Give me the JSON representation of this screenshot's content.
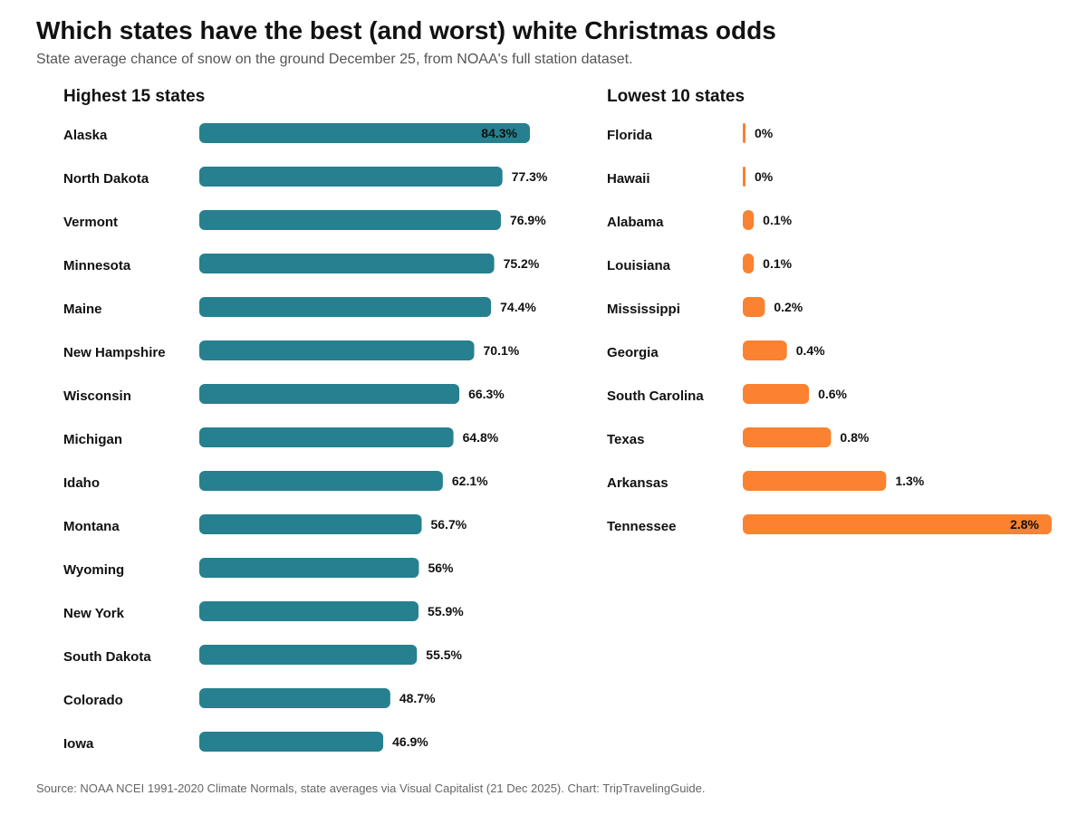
{
  "header": {
    "title": "Which states have the best (and worst) white Christmas odds",
    "subtitle": "State average chance of snow on the ground December 25, from NOAA's full station dataset."
  },
  "footer": {
    "source": "Source: NOAA NCEI 1991-2020 Climate Normals, state averages via Visual Capitalist (21 Dec 2025). Chart: TripTravelingGuide."
  },
  "colors": {
    "highest": "#26808f",
    "lowest": "#fa8230"
  },
  "chart_data": [
    {
      "type": "bar",
      "orientation": "horizontal",
      "title": "Highest 15 states",
      "categories": [
        "Alaska",
        "North Dakota",
        "Vermont",
        "Minnesota",
        "Maine",
        "New Hampshire",
        "Wisconsin",
        "Michigan",
        "Idaho",
        "Montana",
        "Wyoming",
        "New York",
        "South Dakota",
        "Colorado",
        "Iowa"
      ],
      "values": [
        84.3,
        77.3,
        76.9,
        75.2,
        74.4,
        70.1,
        66.3,
        64.8,
        62.1,
        56.7,
        56,
        55.9,
        55.5,
        48.7,
        46.9
      ],
      "value_labels": [
        "84.3%",
        "77.3%",
        "76.9%",
        "75.2%",
        "74.4%",
        "70.1%",
        "66.3%",
        "64.8%",
        "62.1%",
        "56.7%",
        "56%",
        "55.9%",
        "55.5%",
        "48.7%",
        "46.9%"
      ],
      "xlim": [
        0,
        84.3
      ],
      "grid": false,
      "legend": "none"
    },
    {
      "type": "bar",
      "orientation": "horizontal",
      "title": "Lowest 10 states",
      "categories": [
        "Florida",
        "Hawaii",
        "Alabama",
        "Louisiana",
        "Mississippi",
        "Georgia",
        "South Carolina",
        "Texas",
        "Arkansas",
        "Tennessee"
      ],
      "values": [
        0,
        0,
        0.1,
        0.1,
        0.2,
        0.4,
        0.6,
        0.8,
        1.3,
        2.8
      ],
      "value_labels": [
        "0%",
        "0%",
        "0.1%",
        "0.1%",
        "0.2%",
        "0.4%",
        "0.6%",
        "0.8%",
        "1.3%",
        "2.8%"
      ],
      "xlim": [
        0,
        2.8
      ],
      "grid": false,
      "legend": "none"
    }
  ]
}
